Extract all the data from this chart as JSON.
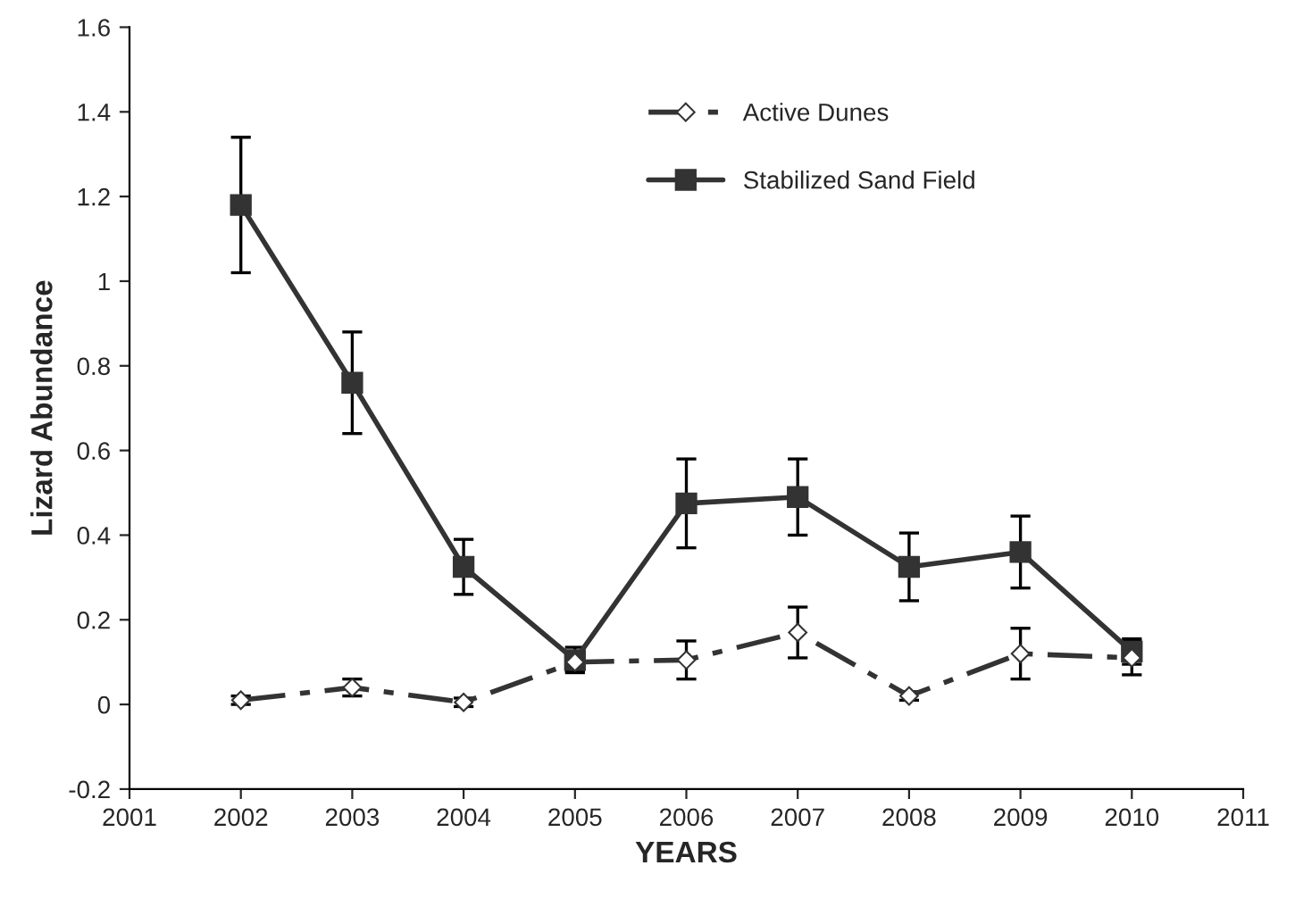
{
  "chart_data": {
    "type": "line",
    "xlabel": "YEARS",
    "ylabel": "Lizard Abundance",
    "x": [
      2002,
      2003,
      2004,
      2005,
      2006,
      2007,
      2008,
      2009,
      2010
    ],
    "series": [
      {
        "name": "Active Dunes",
        "color": "#333333",
        "marker": "diamond",
        "line_style": "dashed",
        "values": [
          0.01,
          0.04,
          0.005,
          0.1,
          0.105,
          0.17,
          0.02,
          0.12,
          0.11
        ],
        "errors": [
          0.01,
          0.02,
          0.01,
          0.02,
          0.045,
          0.06,
          0.01,
          0.06,
          0.04
        ]
      },
      {
        "name": "Stabilized Sand Field",
        "color": "#333333",
        "marker": "square",
        "line_style": "solid",
        "values": [
          1.18,
          0.76,
          0.325,
          0.105,
          0.475,
          0.49,
          0.325,
          0.36,
          0.125
        ],
        "errors": [
          0.16,
          0.12,
          0.065,
          0.03,
          0.105,
          0.09,
          0.08,
          0.085,
          0.03
        ]
      }
    ],
    "xlim": [
      2001,
      2011
    ],
    "xticks": [
      2001,
      2002,
      2003,
      2004,
      2005,
      2006,
      2007,
      2008,
      2009,
      2010,
      2011
    ],
    "ylim": [
      -0.2,
      1.6
    ],
    "yticks": [
      -0.2,
      0,
      0.2,
      0.4,
      0.6,
      0.8,
      1,
      1.2,
      1.4,
      1.6
    ],
    "grid": false,
    "legend": "top right"
  }
}
